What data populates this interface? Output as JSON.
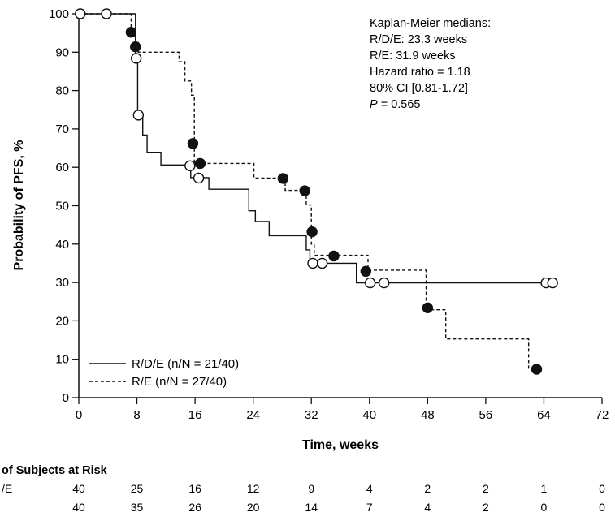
{
  "chart_data": {
    "type": "line",
    "xlabel": "Time, weeks",
    "ylabel": "Probability of PFS, %",
    "xlim": [
      0,
      72
    ],
    "ylim": [
      0,
      100
    ],
    "xticks": [
      0,
      8,
      16,
      24,
      32,
      40,
      48,
      56,
      64,
      72
    ],
    "yticks": [
      0,
      10,
      20,
      30,
      40,
      50,
      60,
      70,
      80,
      90,
      100
    ],
    "grid": false,
    "legend_position": "bottom-left",
    "annotations": [
      "Kaplan-Meier medians:",
      "R/D/E: 23.3 weeks",
      "R/E: 31.9 weeks",
      "Hazard ratio = 1.18",
      "80% CI [0.81-1.72]",
      "P = 0.565"
    ],
    "series": [
      {
        "name": "R/D/E (n/N = 21/40)",
        "style": "solid",
        "marker": "open-circle",
        "step_x": [
          0,
          7.8,
          8.1,
          8.8,
          9.4,
          11.3,
          15.4,
          16.2,
          17.9,
          23.4,
          24.3,
          26.2,
          31.3,
          31.8,
          32.5,
          38.2,
          40.0,
          65.5
        ],
        "step_y": [
          100,
          88.6,
          73.7,
          68.4,
          63.9,
          60.6,
          57.3,
          57.3,
          54.3,
          48.7,
          45.9,
          42.2,
          38.5,
          35.0,
          35.0,
          29.9,
          29.9,
          29.9
        ],
        "censor_x": [
          0.2,
          3.8,
          7.9,
          8.2,
          15.3,
          16.5,
          32.2,
          33.5,
          40.1,
          42.0,
          64.3,
          65.2
        ],
        "censor_y": [
          100,
          100,
          88.4,
          73.6,
          60.4,
          57.2,
          35.0,
          35.0,
          29.9,
          29.9,
          29.9,
          29.9
        ]
      },
      {
        "name": "R/E (n/N = 27/40)",
        "style": "dashed",
        "marker": "filled-circle",
        "step_x": [
          0,
          7.2,
          7.8,
          8.2,
          13.8,
          14.6,
          15.5,
          15.9,
          16.7,
          24.1,
          28.4,
          31.3,
          32.0,
          32.4,
          35.2,
          39.8,
          47.8,
          50.5,
          61.9,
          63.0
        ],
        "step_y": [
          100,
          95.0,
          92.5,
          90.0,
          87.5,
          82.5,
          78.8,
          61.0,
          61.0,
          57.2,
          54.0,
          50.2,
          40.0,
          37.1,
          37.1,
          33.2,
          22.9,
          15.3,
          7.4,
          7.4
        ],
        "censor_x": [
          7.2,
          7.8,
          15.7,
          16.7,
          28.1,
          31.1,
          32.1,
          35.1,
          39.5,
          48.0,
          63.0
        ],
        "censor_y": [
          95.2,
          91.4,
          66.2,
          61.0,
          57.1,
          53.9,
          43.2,
          36.9,
          32.9,
          23.4,
          7.4
        ]
      }
    ],
    "risk_table": {
      "title": "of Subjects at Risk",
      "times": [
        0,
        8,
        16,
        24,
        32,
        40,
        48,
        56,
        64,
        72
      ],
      "rows": [
        {
          "label": "/E",
          "counts": [
            40,
            25,
            16,
            12,
            9,
            4,
            2,
            2,
            1,
            0
          ]
        },
        {
          "label": "",
          "counts": [
            40,
            35,
            26,
            20,
            14,
            7,
            4,
            2,
            0,
            0
          ]
        }
      ]
    }
  }
}
